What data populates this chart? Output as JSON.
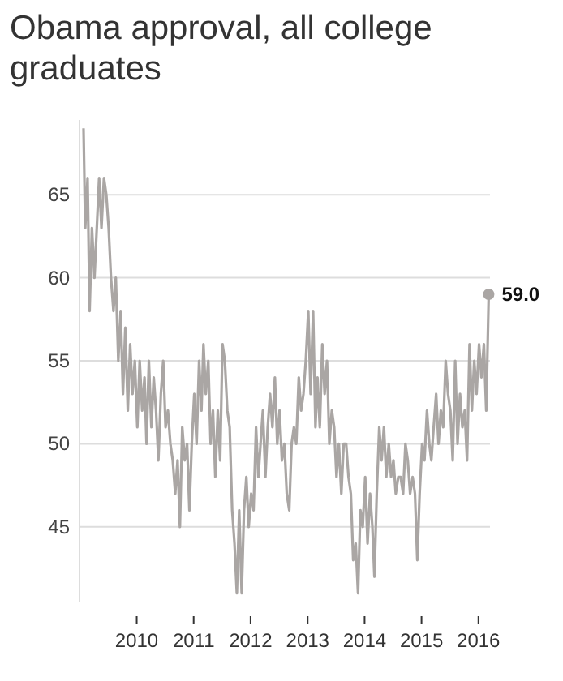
{
  "chart_data": {
    "type": "line",
    "title": "Obama approval, all college graduates",
    "x": [
      "2009-01-25",
      "2009-02-05",
      "2009-02-20",
      "2009-03-05",
      "2009-03-20",
      "2009-04-05",
      "2009-04-20",
      "2009-05-05",
      "2009-05-20",
      "2009-06-05",
      "2009-06-20",
      "2009-07-05",
      "2009-07-20",
      "2009-08-05",
      "2009-08-20",
      "2009-09-05",
      "2009-09-20",
      "2009-10-05",
      "2009-10-20",
      "2009-11-05",
      "2009-11-20",
      "2009-12-05",
      "2009-12-20",
      "2010-01-05",
      "2010-01-20",
      "2010-02-05",
      "2010-02-20",
      "2010-03-05",
      "2010-03-20",
      "2010-04-05",
      "2010-04-20",
      "2010-05-05",
      "2010-05-20",
      "2010-06-05",
      "2010-06-20",
      "2010-07-05",
      "2010-07-20",
      "2010-08-05",
      "2010-08-20",
      "2010-09-05",
      "2010-09-20",
      "2010-10-05",
      "2010-10-20",
      "2010-11-05",
      "2010-11-20",
      "2010-12-05",
      "2010-12-20",
      "2011-01-05",
      "2011-01-20",
      "2011-02-05",
      "2011-02-20",
      "2011-03-05",
      "2011-03-20",
      "2011-04-05",
      "2011-04-20",
      "2011-05-05",
      "2011-05-20",
      "2011-06-05",
      "2011-06-20",
      "2011-07-05",
      "2011-07-20",
      "2011-08-05",
      "2011-08-20",
      "2011-09-05",
      "2011-09-20",
      "2011-10-05",
      "2011-10-20",
      "2011-11-05",
      "2011-11-20",
      "2011-12-05",
      "2011-12-20",
      "2012-01-05",
      "2012-01-20",
      "2012-02-05",
      "2012-02-20",
      "2012-03-05",
      "2012-03-20",
      "2012-04-05",
      "2012-04-20",
      "2012-05-05",
      "2012-05-20",
      "2012-06-05",
      "2012-06-20",
      "2012-07-05",
      "2012-07-20",
      "2012-08-05",
      "2012-08-20",
      "2012-09-05",
      "2012-09-20",
      "2012-10-05",
      "2012-10-20",
      "2012-11-05",
      "2012-11-20",
      "2012-12-05",
      "2012-12-20",
      "2013-01-05",
      "2013-01-20",
      "2013-02-05",
      "2013-02-20",
      "2013-03-05",
      "2013-03-20",
      "2013-04-05",
      "2013-04-20",
      "2013-05-05",
      "2013-05-20",
      "2013-06-05",
      "2013-06-20",
      "2013-07-05",
      "2013-07-20",
      "2013-08-05",
      "2013-08-20",
      "2013-09-05",
      "2013-09-20",
      "2013-10-05",
      "2013-10-20",
      "2013-11-05",
      "2013-11-20",
      "2013-12-05",
      "2013-12-20",
      "2014-01-05",
      "2014-01-20",
      "2014-02-05",
      "2014-02-20",
      "2014-03-05",
      "2014-03-20",
      "2014-04-05",
      "2014-04-20",
      "2014-05-05",
      "2014-05-20",
      "2014-06-05",
      "2014-06-20",
      "2014-07-05",
      "2014-07-20",
      "2014-08-05",
      "2014-08-20",
      "2014-09-05",
      "2014-09-20",
      "2014-10-05",
      "2014-10-20",
      "2014-11-05",
      "2014-11-20",
      "2014-12-05",
      "2014-12-20",
      "2015-01-05",
      "2015-01-20",
      "2015-02-05",
      "2015-02-20",
      "2015-03-05",
      "2015-03-20",
      "2015-04-05",
      "2015-04-20",
      "2015-05-05",
      "2015-05-20",
      "2015-06-05",
      "2015-06-20",
      "2015-07-05",
      "2015-07-20",
      "2015-08-05",
      "2015-08-20",
      "2015-09-05",
      "2015-09-20",
      "2015-10-05",
      "2015-10-20",
      "2015-11-05",
      "2015-11-20",
      "2015-12-05",
      "2015-12-20",
      "2016-01-05",
      "2016-01-20",
      "2016-02-05",
      "2016-02-20",
      "2016-03-07"
    ],
    "series": [
      {
        "color": "#aaa6a4",
        "values": [
          69,
          63,
          66,
          58,
          63,
          60,
          63,
          66,
          63,
          66,
          65,
          63,
          60,
          58,
          60,
          55,
          58,
          53,
          57,
          52,
          56,
          53,
          55,
          51,
          55,
          52,
          54,
          50,
          55,
          51,
          54,
          52,
          49,
          53,
          55,
          51,
          52,
          50,
          49,
          47,
          49,
          45,
          51,
          49,
          50,
          46,
          50,
          53,
          50,
          55,
          52,
          56,
          53,
          55,
          50,
          52,
          48,
          52,
          49,
          56,
          55,
          52,
          51,
          46,
          44,
          41,
          46,
          41,
          46,
          48,
          45,
          47,
          46,
          51,
          48,
          50,
          52,
          48,
          51,
          53,
          51,
          54,
          50,
          52,
          49,
          50,
          47,
          46,
          50,
          51,
          50,
          54,
          52,
          53,
          55,
          58,
          53,
          58,
          51,
          54,
          51,
          56,
          53,
          55,
          50,
          52,
          51,
          48,
          50,
          47,
          50,
          50,
          48,
          47,
          43,
          44,
          41,
          46,
          45,
          48,
          44,
          47,
          45,
          42,
          47,
          51,
          49,
          51,
          48,
          50,
          48,
          49,
          47,
          48,
          48,
          47,
          50,
          49,
          47,
          48,
          47,
          43,
          47,
          50,
          49,
          52,
          50,
          49,
          51,
          53,
          50,
          52,
          51,
          55,
          53,
          52,
          49,
          55,
          50,
          53,
          51,
          52,
          49,
          56,
          52,
          55,
          53,
          56,
          54,
          56,
          52,
          59
        ]
      }
    ],
    "xlim": [
      "2009-01-20",
      "2016-03-15"
    ],
    "xticks": [
      "2010",
      "2011",
      "2012",
      "2013",
      "2014",
      "2015",
      "2016"
    ],
    "ylim": [
      40.5,
      69.5
    ],
    "yticks": [
      45,
      50,
      55,
      60,
      65
    ],
    "grid": "y",
    "annotations": [
      {
        "text": "59.0",
        "x": "2016-03-07",
        "y": 59
      }
    ]
  }
}
